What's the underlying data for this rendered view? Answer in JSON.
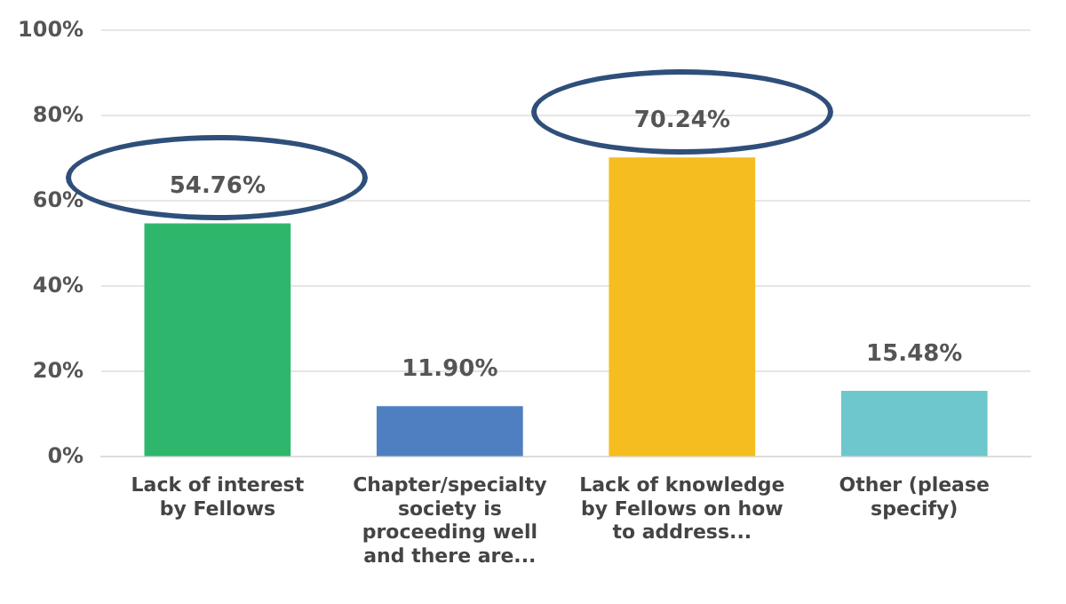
{
  "chart_data": {
    "type": "bar",
    "categories": [
      "Lack of interest by Fellows",
      "Chapter/specialty society is proceeding well and there are...",
      "Lack of knowledge by Fellows on how to address...",
      "Other (please specify)"
    ],
    "values": [
      54.76,
      11.9,
      70.24,
      15.48
    ],
    "colors": [
      "#2eb66c",
      "#4f7fc0",
      "#f5bd1f",
      "#6ec7cd"
    ],
    "value_labels": [
      "54.76%",
      "11.90%",
      "70.24%",
      "15.48%"
    ],
    "ylim": [
      0,
      100
    ],
    "yticks": [
      {
        "value": 0,
        "label": "0%"
      },
      {
        "value": 20,
        "label": "20%"
      },
      {
        "value": 40,
        "label": "40%"
      },
      {
        "value": 60,
        "label": "60%"
      },
      {
        "value": 80,
        "label": "80%"
      },
      {
        "value": 100,
        "label": "100%"
      }
    ],
    "grid": "y",
    "legend": false
  }
}
